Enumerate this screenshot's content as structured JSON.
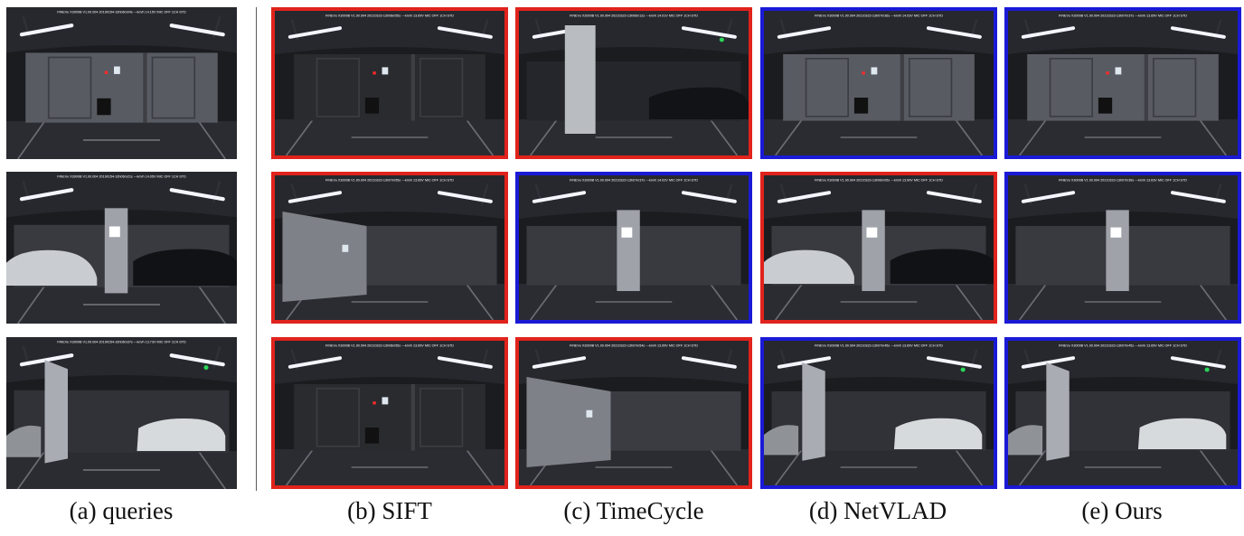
{
  "captions": {
    "queries": "(a) queries",
    "sift": "(b) SIFT",
    "timecycle": "(c) TimeCycle",
    "netvlad": "(d) NetVLAD",
    "ours": "(e) Ours"
  },
  "colors": {
    "incorrect": "#e0231c",
    "correct": "#1a1ad6"
  },
  "queries": [
    {
      "scene": "parking-door",
      "hud": "FINEVu X3000B V1.00.004   20190154-16h06m04s  ---km/h  14.15V  MIC OFF  1CH  STD"
    },
    {
      "scene": "parking-pillar-cars",
      "hud": "FINEVu X3000B V1.00.004   20190154-16h06m21s  ---km/h  14.05V  MIC OFF  1CH  STD"
    },
    {
      "scene": "parking-pillar-left",
      "hud": "FINEVu X3000B V1.00.004   20190154-16h06m37s  ---km/h  13.73V  MIC OFF  1CH  STD"
    }
  ],
  "results": [
    [
      {
        "method": "SIFT",
        "correct": false,
        "scene": "parking-door-dark",
        "hud": "FINEVu X3000B V1.00.004   20210323-13h08m55s  ---km/h  13.69V  MIC OFF  1CH  STD"
      },
      {
        "method": "TimeCycle",
        "correct": false,
        "scene": "parking-pillar-car-right",
        "hud": "FINEVu X3000B V1.00.004   20210323-13h06m12s  ---km/h  14.01V  MIC OFF  1CH  STD"
      },
      {
        "method": "NetVLAD",
        "correct": true,
        "scene": "parking-door",
        "hud": "FINEVu X3000B V1.00.004   20210323-13h07m36s  ---km/h  14.03V  MIC OFF  1CH  STD"
      },
      {
        "method": "Ours",
        "correct": true,
        "scene": "parking-door",
        "hud": "FINEVu X3000B V1.00.004   20210323-13h07m37s  ---km/h  13.69V  MIC OFF  1CH  STD"
      }
    ],
    [
      {
        "method": "SIFT",
        "correct": false,
        "scene": "parking-wall-bright",
        "hud": "FINEVu X3000B V1.00.004   20210323-13h07m55s  ---km/h  13.69V  MIC OFF  1CH  STD"
      },
      {
        "method": "TimeCycle",
        "correct": true,
        "scene": "parking-pillar-empty",
        "hud": "FINEVu X3000B V1.00.004   20210323-13h07m37s  ---km/h  14.02V  MIC OFF  1CH  STD"
      },
      {
        "method": "NetVLAD",
        "correct": false,
        "scene": "parking-pillar-cars",
        "hud": "FINEVu X3000B V1.00.004   20210323-13h06m05s  ---km/h  13.90V  MIC OFF  1CH  STD"
      },
      {
        "method": "Ours",
        "correct": true,
        "scene": "parking-pillar-empty",
        "hud": "FINEVu X3000B V1.00.004   20210323-13h07m39s  ---km/h  13.63V  MIC OFF  1CH  STD"
      }
    ],
    [
      {
        "method": "SIFT",
        "correct": false,
        "scene": "parking-door-dark",
        "hud": "FINEVu X3000B V1.00.004   20210323-13h08m55s  ---km/h  13.69V  MIC OFF  1CH  STD"
      },
      {
        "method": "TimeCycle",
        "correct": false,
        "scene": "parking-wall-bright",
        "hud": "FINEVu X3000B V1.00.004   20210323-13h07m54s  ---km/h  13.99V  MIC OFF  1CH  STD"
      },
      {
        "method": "NetVLAD",
        "correct": true,
        "scene": "parking-pillar-left",
        "hud": "FINEVu X3000B V1.00.004   20210323-13h07m45s  ---km/h  13.69V  MIC OFF  1CH  STD"
      },
      {
        "method": "Ours",
        "correct": true,
        "scene": "parking-pillar-left",
        "hud": "FINEVu X3000B V1.00.004   20210323-13h07m45s  ---km/h  13.69V  MIC OFF  1CH  STD"
      }
    ]
  ]
}
